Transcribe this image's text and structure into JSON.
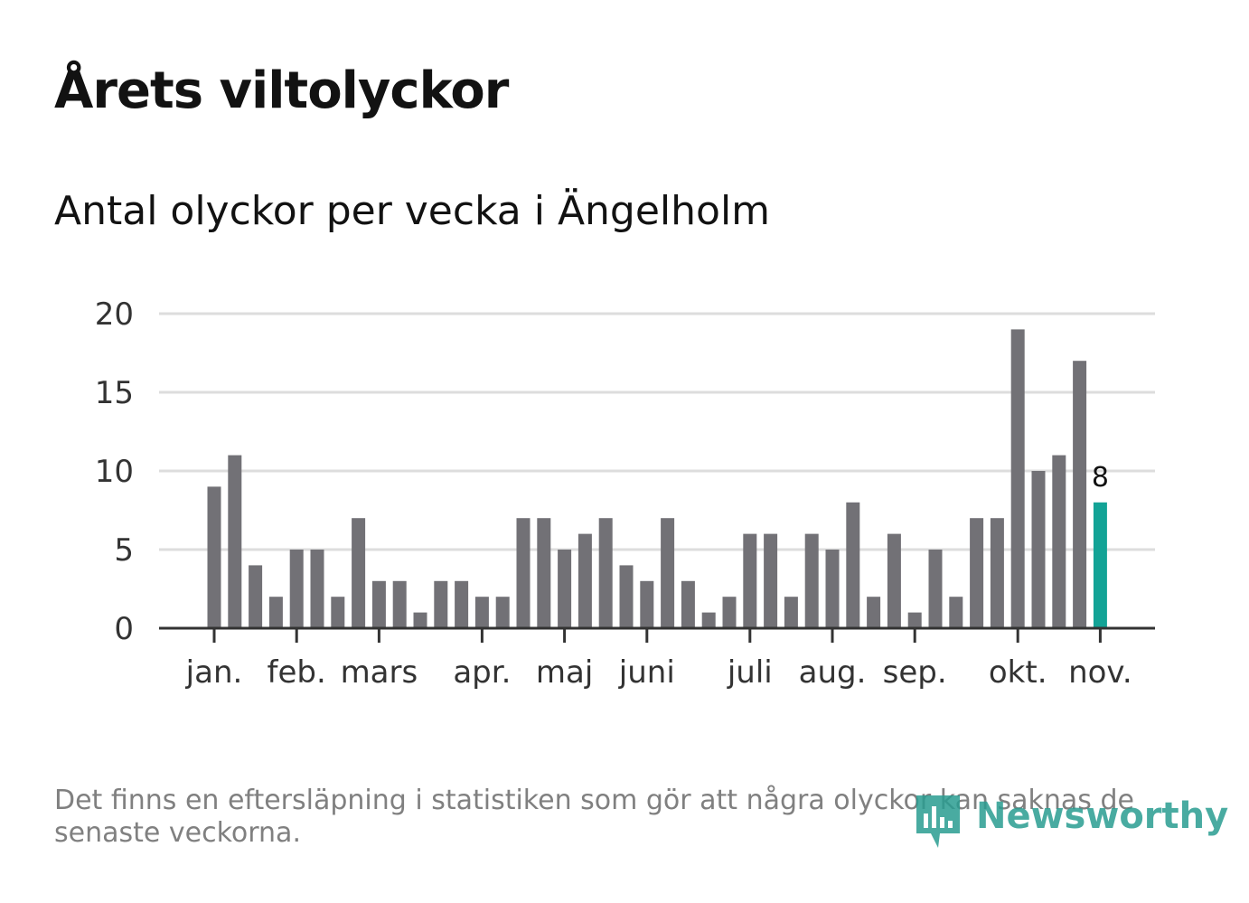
{
  "title": "Årets viltolyckor",
  "subtitle": "Antal olyckor per vecka i Ängelholm",
  "footnote": "Det finns en eftersläpning i statistiken som gör att några olyckor kan saknas de senaste veckorna.",
  "logo": {
    "text": "Newsworthy",
    "icon": "bar-chart-speech-bubble-icon"
  },
  "colors": {
    "bar": "#727176",
    "highlight": "#13a396",
    "grid": "#dddddd",
    "axis": "#333333"
  },
  "chart_data": {
    "type": "bar",
    "title": "Antal olyckor per vecka i Ängelholm",
    "xlabel": "",
    "ylabel": "",
    "ylim": [
      0,
      20
    ],
    "yticks": [
      0,
      5,
      10,
      15,
      20
    ],
    "grid": true,
    "values": [
      9,
      11,
      4,
      2,
      5,
      5,
      2,
      7,
      3,
      3,
      1,
      3,
      3,
      2,
      2,
      7,
      7,
      5,
      6,
      7,
      4,
      3,
      7,
      3,
      1,
      2,
      6,
      6,
      2,
      6,
      5,
      8,
      2,
      6,
      1,
      5,
      2,
      7,
      7,
      19,
      10,
      11,
      17,
      8
    ],
    "highlight_index": 43,
    "highlight_label": "8",
    "month_ticks": [
      {
        "label": "jan.",
        "week": 0
      },
      {
        "label": "feb.",
        "week": 4
      },
      {
        "label": "mars",
        "week": 8
      },
      {
        "label": "apr.",
        "week": 13
      },
      {
        "label": "maj",
        "week": 17
      },
      {
        "label": "juni",
        "week": 21
      },
      {
        "label": "juli",
        "week": 26
      },
      {
        "label": "aug.",
        "week": 30
      },
      {
        "label": "sep.",
        "week": 34
      },
      {
        "label": "okt.",
        "week": 39
      },
      {
        "label": "nov.",
        "week": 43
      }
    ]
  }
}
